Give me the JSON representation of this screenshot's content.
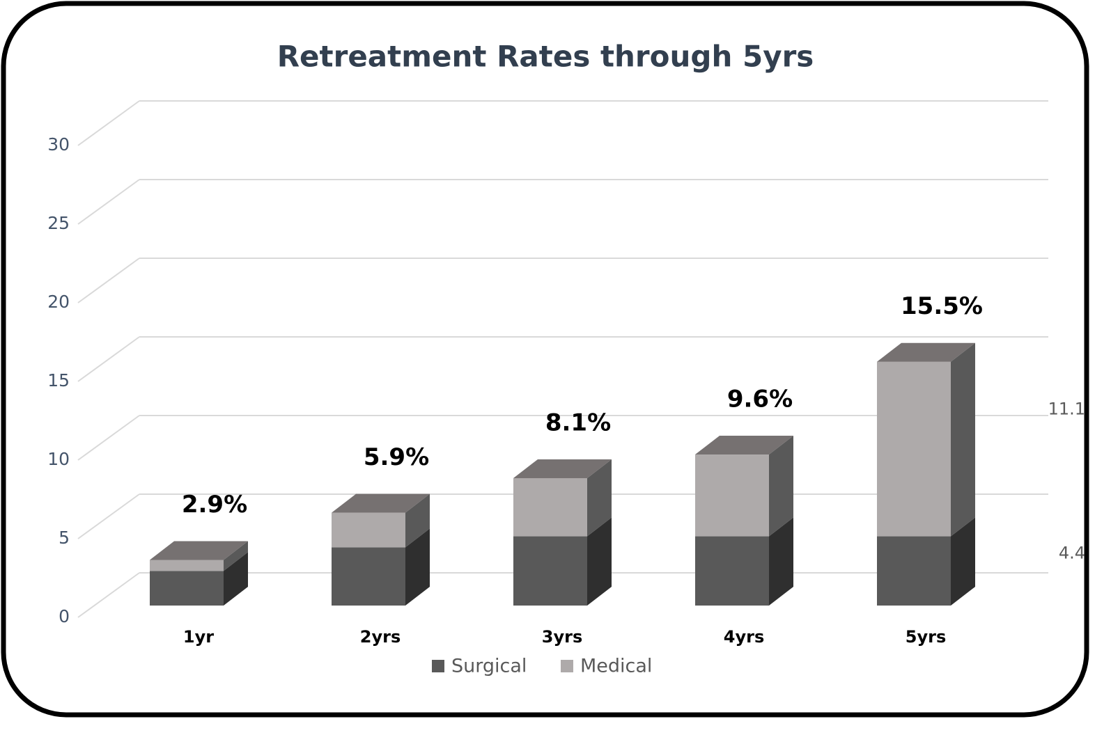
{
  "chart_data": {
    "type": "bar3d_stacked",
    "title": "Retreatment Rates through 5yrs",
    "categories": [
      "1yr",
      "2yrs",
      "3yrs",
      "4yrs",
      "5yrs"
    ],
    "series": [
      {
        "name": "Surgical",
        "color": "#595959",
        "side_color": "#2f2f2f",
        "values": [
          2.2,
          3.7,
          4.4,
          4.4,
          4.4
        ],
        "value_labels": [
          null,
          null,
          null,
          null,
          "4.4"
        ]
      },
      {
        "name": "Medical",
        "color": "#aeaaaa",
        "side_color": "#595959",
        "values": [
          0.7,
          2.2,
          3.7,
          5.2,
          11.1
        ],
        "value_labels": [
          null,
          null,
          null,
          null,
          "11.1"
        ]
      }
    ],
    "totals": [
      2.9,
      5.9,
      8.1,
      9.6,
      15.5
    ],
    "total_labels": [
      "2.9%",
      "5.9%",
      "8.1%",
      "9.6%",
      "15.5%"
    ],
    "top_color": "#767171",
    "ylim": [
      0,
      30
    ],
    "yticks": [
      0,
      5,
      10,
      15,
      20,
      25,
      30
    ],
    "grid": true,
    "legend": "bottom"
  }
}
